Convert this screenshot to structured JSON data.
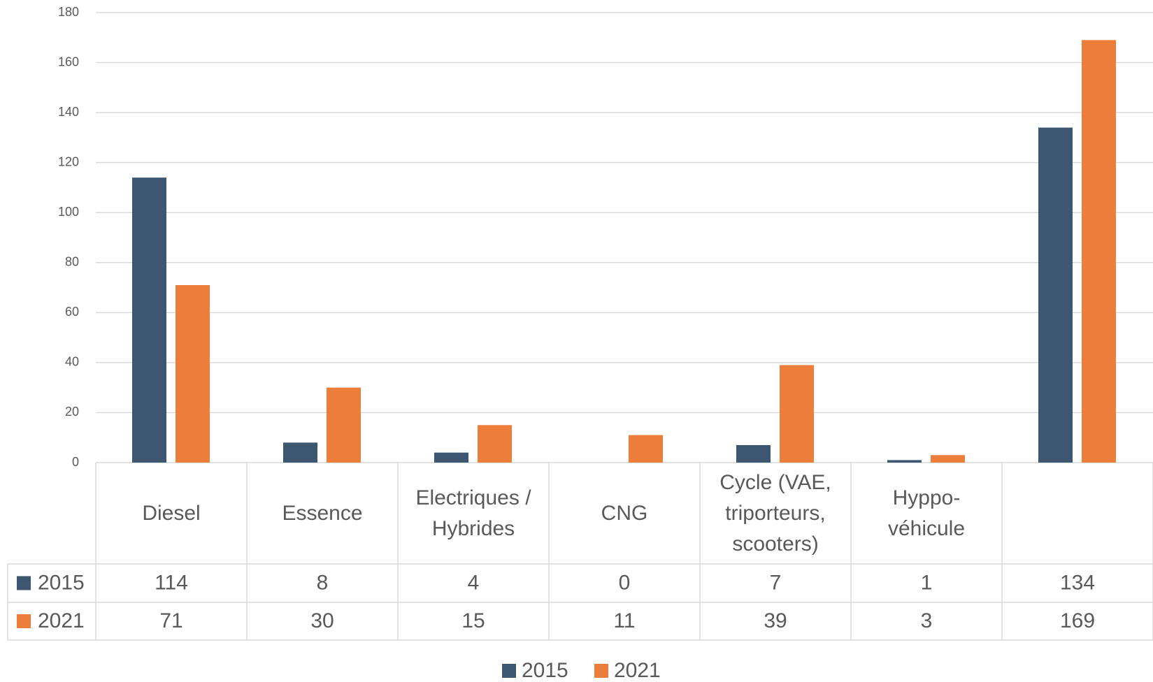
{
  "chart_data": {
    "type": "bar",
    "categories": [
      "Diesel",
      "Essence",
      "Electriques / Hybrides",
      "CNG",
      "Cycle (VAE, triporteurs, scooters)",
      "Hyppo-véhicule",
      null
    ],
    "series": [
      {
        "name": "2015",
        "color": "#3e5771",
        "values": [
          114,
          8,
          4,
          0,
          7,
          1,
          134
        ]
      },
      {
        "name": "2021",
        "color": "#ed7d3a",
        "values": [
          71,
          30,
          15,
          11,
          39,
          3,
          169
        ]
      }
    ],
    "ylim": [
      0,
      180
    ],
    "yticks": [
      0,
      20,
      40,
      60,
      80,
      100,
      120,
      140,
      160,
      180
    ],
    "grid": true,
    "legend": "bottom"
  }
}
